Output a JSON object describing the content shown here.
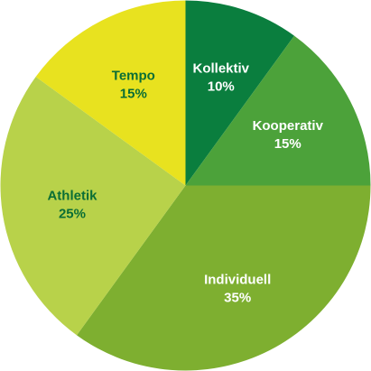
{
  "chart_data": {
    "type": "pie",
    "title": "",
    "start_angle_deg": 0,
    "direction": "clockwise",
    "slices": [
      {
        "label": "Kollektiv",
        "value": 10,
        "display": "10%",
        "color": "#0A7E3E",
        "text_color": "#FFFFFF"
      },
      {
        "label": "Kooperativ",
        "value": 15,
        "display": "15%",
        "color": "#4CA23A",
        "text_color": "#FFFFFF"
      },
      {
        "label": "Individuell",
        "value": 35,
        "display": "35%",
        "color": "#7EAF30",
        "text_color": "#FFFFFF"
      },
      {
        "label": "Athletik",
        "value": 25,
        "display": "25%",
        "color": "#B8D24A",
        "text_color": "#0A6E35"
      },
      {
        "label": "Tempo",
        "value": 15,
        "display": "15%",
        "color": "#E8E21F",
        "text_color": "#0A6E35"
      }
    ]
  }
}
